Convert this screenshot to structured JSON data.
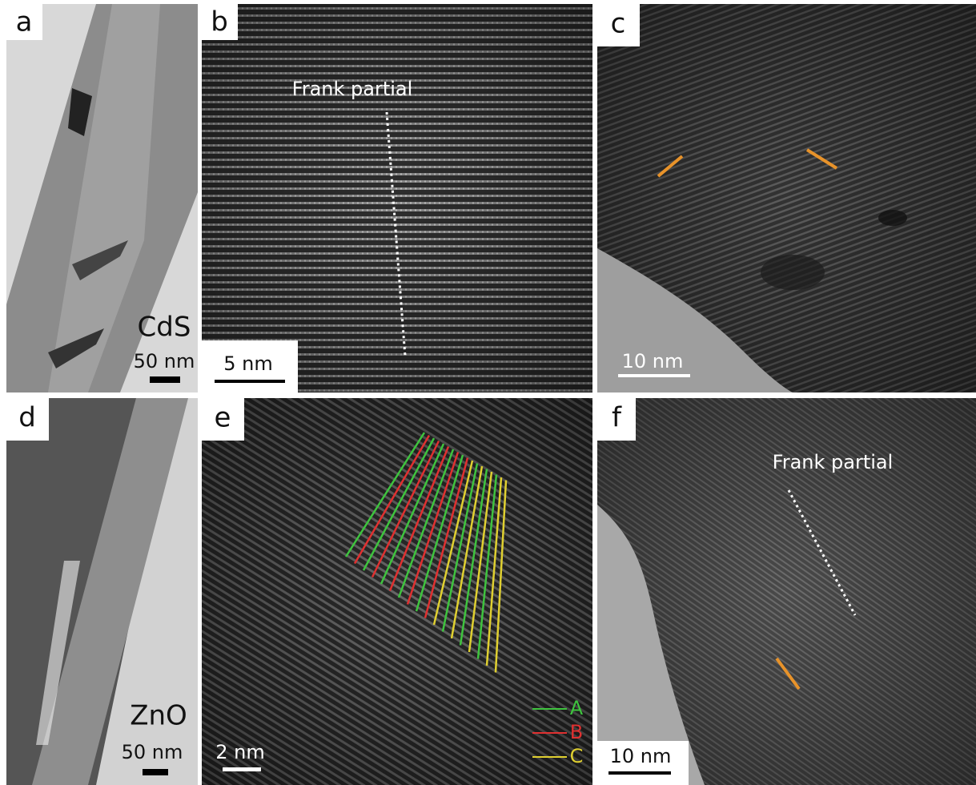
{
  "panels": [
    {
      "label": "a",
      "material": "CdS",
      "scale_bar": "50 nm"
    },
    {
      "label": "b",
      "annotation": "Frank partial",
      "scale_bar": "5 nm"
    },
    {
      "label": "c",
      "scale_bar": "10 nm"
    },
    {
      "label": "d",
      "material": "ZnO",
      "scale_bar": "50 nm"
    },
    {
      "label": "e",
      "scale_bar": "2 nm",
      "legend": [
        "A",
        "B",
        "C"
      ]
    },
    {
      "label": "f",
      "annotation": "Frank partial",
      "scale_bar": "10 nm"
    }
  ]
}
